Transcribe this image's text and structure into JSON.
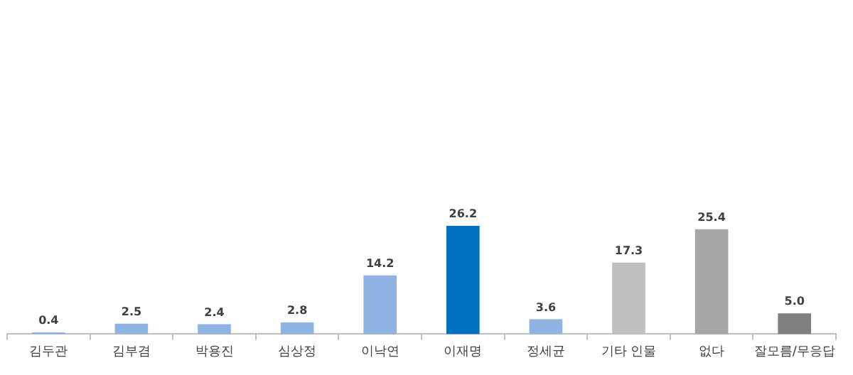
{
  "chart_data": {
    "type": "bar",
    "categories": [
      "김두관",
      "김부겸",
      "박용진",
      "심상정",
      "이낙연",
      "이재명",
      "정세균",
      "기타 인물",
      "없다",
      "잘모름/무응답"
    ],
    "values": [
      0.4,
      2.5,
      2.4,
      2.8,
      14.2,
      26.2,
      3.6,
      17.3,
      25.4,
      5.0
    ],
    "colors": [
      "#8db4e2",
      "#8db4e2",
      "#8db4e2",
      "#8db4e2",
      "#8db4e2",
      "#0070c0",
      "#8db4e2",
      "#bfbfbf",
      "#a6a6a6",
      "#7f7f7f"
    ],
    "value_labels": [
      "0.4",
      "2.5",
      "2.4",
      "2.8",
      "14.2",
      "26.2",
      "3.6",
      "17.3",
      "25.4",
      "5.0"
    ],
    "grid": false,
    "legend": false
  }
}
